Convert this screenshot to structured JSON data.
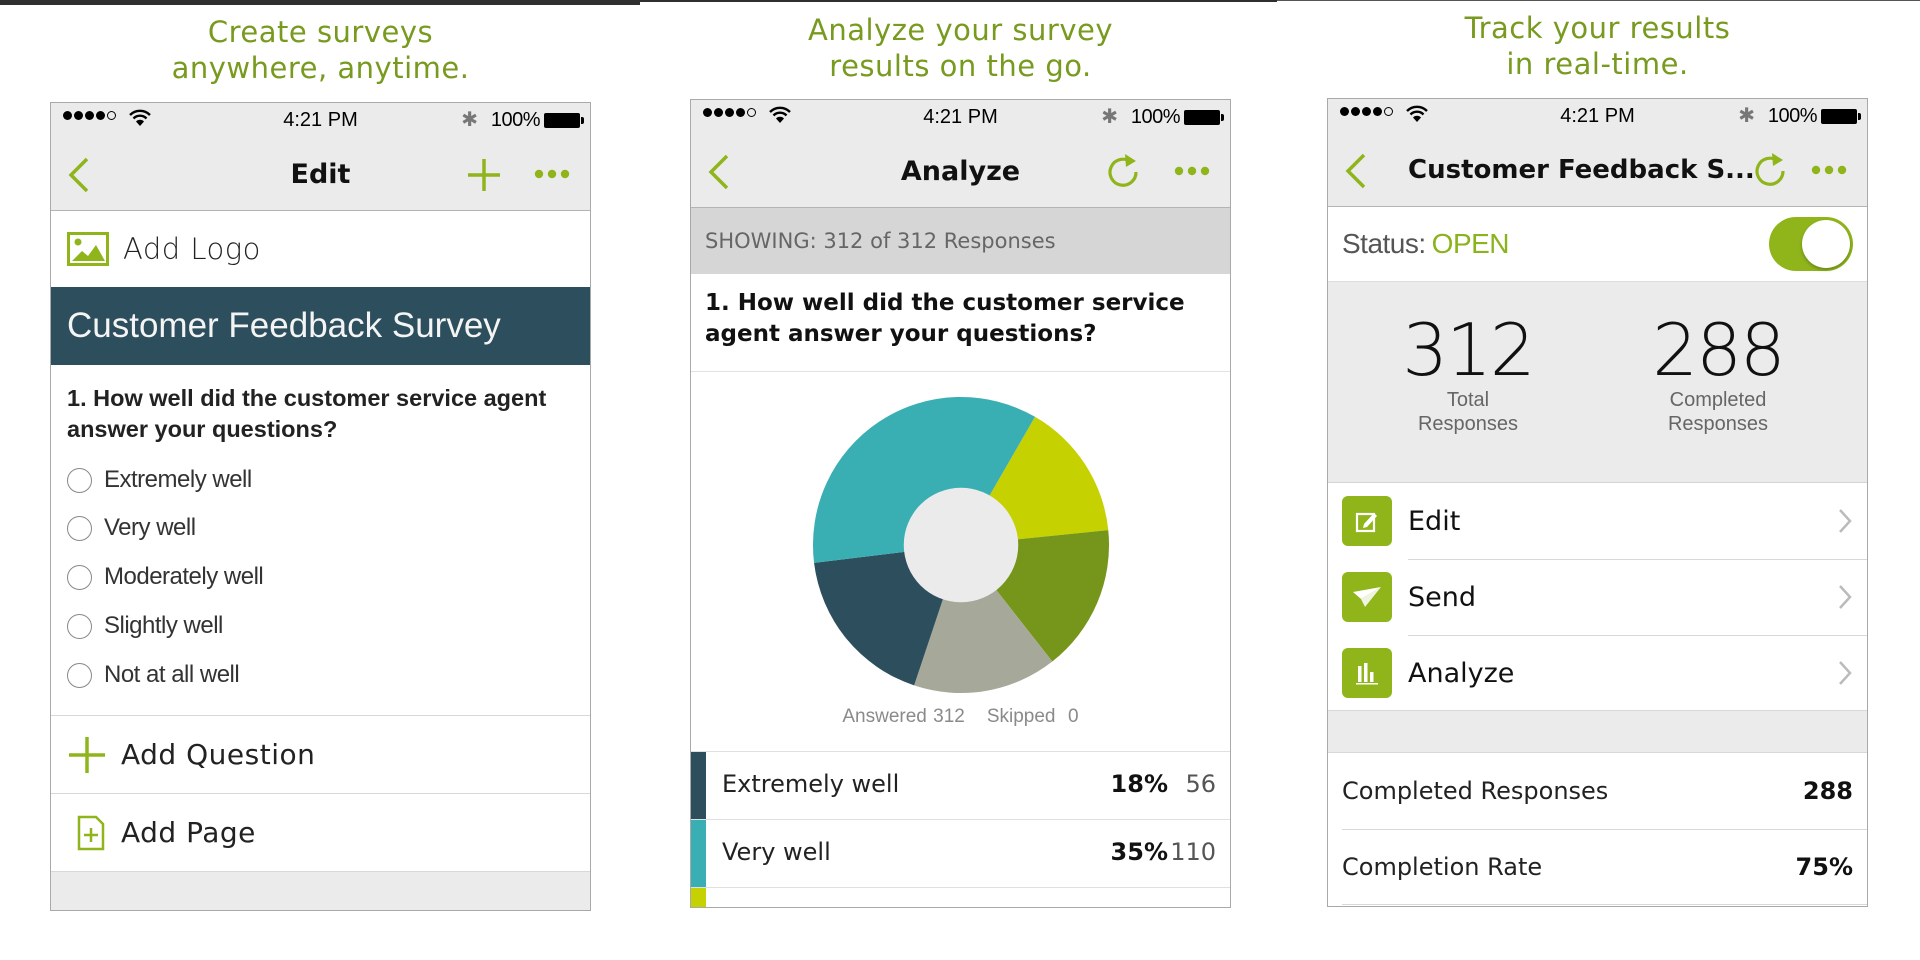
{
  "colors": {
    "accent_green": "#8fb51b",
    "headline_green": "#789a1f",
    "dark_teal": "#2c4e5d",
    "teal": "#3aafb3",
    "yellow_green": "#c5d100",
    "olive": "#76961b",
    "grey_sage": "#a6a999"
  },
  "statusbar": {
    "time": "4:21 PM",
    "battery_pct": "100%",
    "signal_bars": 4,
    "signal_total": 5
  },
  "panels": [
    {
      "headline": [
        "Create surveys",
        "anywhere, anytime."
      ],
      "nav": {
        "title": "Edit",
        "back_icon": "chevron-left-icon",
        "action1_icon": "plus-icon",
        "action2_icon": "more-icon"
      },
      "add_logo": "Add Logo",
      "survey_title": "Customer Feedback Survey",
      "question": "1. How well did the customer service agent answer your questions?",
      "options": [
        "Extremely well",
        "Very well",
        "Moderately well",
        "Slightly well",
        "Not at all well"
      ],
      "add_question": "Add Question",
      "add_page": "Add Page"
    },
    {
      "headline": [
        "Analyze your survey",
        "results on the go."
      ],
      "nav": {
        "title": "Analyze",
        "back_icon": "chevron-left-icon",
        "action1_icon": "refresh-icon",
        "action2_icon": "more-icon"
      },
      "showing": "SHOWING: 312 of 312 Responses",
      "question": "1. How well did the customer service agent answer your questions?",
      "answered_label": "Answered 312",
      "skipped_label": "Skipped  0",
      "results": [
        {
          "label": "Extremely well",
          "pct": "18%",
          "count": "56",
          "color": "#2c4e5d"
        },
        {
          "label": "Very well",
          "pct": "35%",
          "count": "110",
          "color": "#3aafb3"
        },
        {
          "label": "",
          "pct": "",
          "count": "",
          "color": "#c5d100"
        }
      ]
    },
    {
      "headline": [
        "Track your results",
        "in real-time."
      ],
      "nav": {
        "title": "Customer Feedback S...",
        "back_icon": "chevron-left-icon",
        "action1_icon": "refresh-icon",
        "action2_icon": "more-icon"
      },
      "status_label": "Status:",
      "status_value": "OPEN",
      "toggle_on": true,
      "stats": [
        {
          "value": "312",
          "caption": [
            "Total",
            "Responses"
          ]
        },
        {
          "value": "288",
          "caption": [
            "Completed",
            "Responses"
          ]
        }
      ],
      "menu": [
        {
          "label": "Edit",
          "icon": "edit-icon"
        },
        {
          "label": "Send",
          "icon": "paper-plane-icon"
        },
        {
          "label": "Analyze",
          "icon": "bar-chart-icon"
        }
      ],
      "summary": [
        {
          "label": "Completed Responses",
          "value": "288"
        },
        {
          "label": "Completion Rate",
          "value": "75%"
        }
      ]
    }
  ],
  "chart_data": {
    "type": "pie",
    "title": "1. How well did the customer service agent answer your questions?",
    "donut": true,
    "categories": [
      "Extremely well",
      "Very well",
      "Moderately well",
      "Slightly well",
      "Not at all well"
    ],
    "values": [
      56,
      110,
      47,
      50,
      49
    ],
    "percent": [
      18,
      35,
      15,
      16,
      16
    ],
    "colors": [
      "#2c4e5d",
      "#3aafb3",
      "#c5d100",
      "#76961b",
      "#a6a999"
    ],
    "answered": 312,
    "skipped": 0,
    "note": "Only Extremely well (18%, 56) and Very well (35%, 110) are labeled; remaining slice values estimated from slice angles."
  }
}
